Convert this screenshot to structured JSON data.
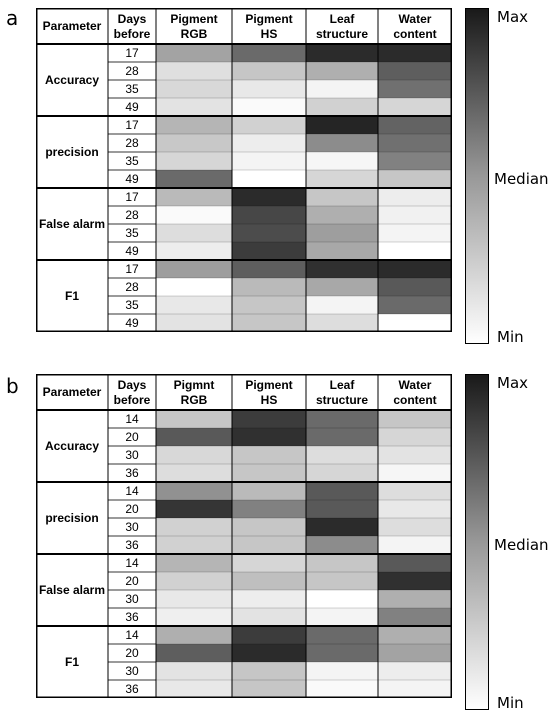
{
  "panels": [
    {
      "label": "a",
      "headers": [
        "Parameter",
        "Days\nbefore",
        "Pigment\nRGB",
        "Pigment\nHS",
        "Leaf\nstructure",
        "Water\ncontent"
      ],
      "groups": [
        {
          "name": "Accuracy",
          "days": [
            "17",
            "28",
            "35",
            "49"
          ],
          "values": [
            [
              0.4,
              0.65,
              0.92,
              0.92
            ],
            [
              0.14,
              0.25,
              0.35,
              0.7
            ],
            [
              0.17,
              0.1,
              0.05,
              0.62
            ],
            [
              0.12,
              0.02,
              0.2,
              0.18
            ]
          ]
        },
        {
          "name": "precision",
          "days": [
            "17",
            "28",
            "35",
            "49"
          ],
          "values": [
            [
              0.32,
              0.2,
              0.95,
              0.68
            ],
            [
              0.24,
              0.08,
              0.5,
              0.62
            ],
            [
              0.18,
              0.05,
              0.04,
              0.55
            ],
            [
              0.65,
              0.0,
              0.18,
              0.25
            ]
          ]
        },
        {
          "name": "False alarm",
          "days": [
            "17",
            "28",
            "35",
            "49"
          ],
          "values": [
            [
              0.3,
              0.92,
              0.25,
              0.08
            ],
            [
              0.02,
              0.8,
              0.35,
              0.06
            ],
            [
              0.15,
              0.78,
              0.42,
              0.05
            ],
            [
              0.08,
              0.85,
              0.38,
              0.0
            ]
          ]
        },
        {
          "name": "F1",
          "days": [
            "17",
            "28",
            "35",
            "49"
          ],
          "values": [
            [
              0.42,
              0.7,
              0.9,
              0.92
            ],
            [
              0.0,
              0.3,
              0.38,
              0.72
            ],
            [
              0.1,
              0.25,
              0.05,
              0.65
            ],
            [
              0.12,
              0.25,
              0.15,
              0.0
            ]
          ]
        }
      ]
    },
    {
      "label": "b",
      "headers": [
        "Parameter",
        "Days\nbefore",
        "Pigmnt\nRGB",
        "Pigment\nHS",
        "Leaf\nstructure",
        "Water\ncontent"
      ],
      "groups": [
        {
          "name": "Accuracy",
          "days": [
            "14",
            "20",
            "30",
            "36"
          ],
          "values": [
            [
              0.25,
              0.85,
              0.65,
              0.25
            ],
            [
              0.72,
              0.9,
              0.65,
              0.18
            ],
            [
              0.17,
              0.25,
              0.15,
              0.12
            ],
            [
              0.15,
              0.25,
              0.18,
              0.04
            ]
          ]
        },
        {
          "name": "precision",
          "days": [
            "14",
            "20",
            "30",
            "36"
          ],
          "values": [
            [
              0.48,
              0.3,
              0.72,
              0.15
            ],
            [
              0.88,
              0.55,
              0.72,
              0.1
            ],
            [
              0.2,
              0.25,
              0.92,
              0.15
            ],
            [
              0.2,
              0.25,
              0.5,
              0.05
            ]
          ]
        },
        {
          "name": "False alarm",
          "days": [
            "14",
            "20",
            "30",
            "36"
          ],
          "values": [
            [
              0.32,
              0.18,
              0.25,
              0.72
            ],
            [
              0.2,
              0.28,
              0.25,
              0.9
            ],
            [
              0.1,
              0.08,
              0.0,
              0.35
            ],
            [
              0.07,
              0.12,
              0.05,
              0.55
            ]
          ]
        },
        {
          "name": "F1",
          "days": [
            "14",
            "20",
            "30",
            "36"
          ],
          "values": [
            [
              0.35,
              0.85,
              0.65,
              0.35
            ],
            [
              0.7,
              0.92,
              0.65,
              0.4
            ],
            [
              0.12,
              0.25,
              0.05,
              0.08
            ],
            [
              0.1,
              0.25,
              0.02,
              0.05
            ]
          ]
        }
      ]
    }
  ],
  "colorbar": {
    "max_label": "Max",
    "mid_label": "Median",
    "min_label": "Min"
  },
  "chart_data": [
    {
      "type": "heatmap",
      "panel": "a",
      "columns": [
        "Pigment RGB",
        "Pigment HS",
        "Leaf structure",
        "Water content"
      ],
      "row_groups": [
        "Accuracy",
        "precision",
        "False alarm",
        "F1"
      ],
      "days_before": [
        "17",
        "28",
        "35",
        "49"
      ],
      "scale": [
        "Min",
        "Median",
        "Max"
      ]
    },
    {
      "type": "heatmap",
      "panel": "b",
      "columns": [
        "Pigmnt RGB",
        "Pigment HS",
        "Leaf structure",
        "Water content"
      ],
      "row_groups": [
        "Accuracy",
        "precision",
        "False alarm",
        "F1"
      ],
      "days_before": [
        "14",
        "20",
        "30",
        "36"
      ],
      "scale": [
        "Min",
        "Median",
        "Max"
      ]
    }
  ]
}
